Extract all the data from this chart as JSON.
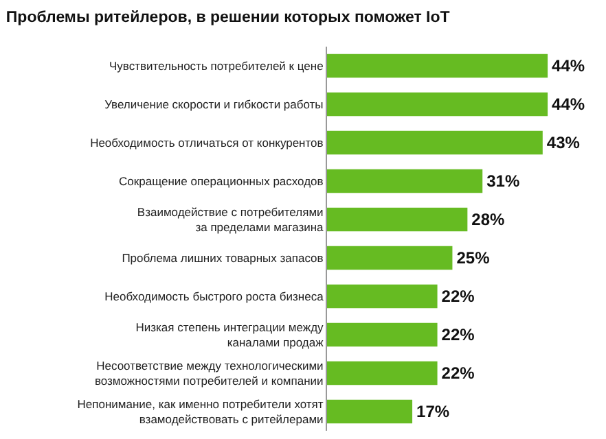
{
  "chart_data": {
    "type": "bar",
    "orientation": "horizontal",
    "title": "Проблемы ритейлеров, в решении которых поможет IoT",
    "categories": [
      "Чувствительность потребителей к цене",
      "Увеличение скорости и гибкости работы",
      "Необходимость отличаться от конкурентов",
      "Сокращение операционных расходов",
      "Взаимодействие с потребителями\nза пределами магазина",
      "Проблема лишних товарных запасов",
      "Необходимость быстрого роста бизнеса",
      "Низкая степень интеграции между\nканалами продаж",
      "Несоответствие между технологическими\nвозможностями потребителей и компании",
      "Непонимание, как именно потребители хотят\nвзамодействовать с ритейлерами"
    ],
    "values": [
      44,
      44,
      43,
      31,
      28,
      25,
      22,
      22,
      22,
      17
    ],
    "value_labels": [
      "44%",
      "44%",
      "43%",
      "31%",
      "28%",
      "25%",
      "22%",
      "22%",
      "22%",
      "17%"
    ],
    "color": "#66bb22",
    "grid": false,
    "legend": false
  }
}
